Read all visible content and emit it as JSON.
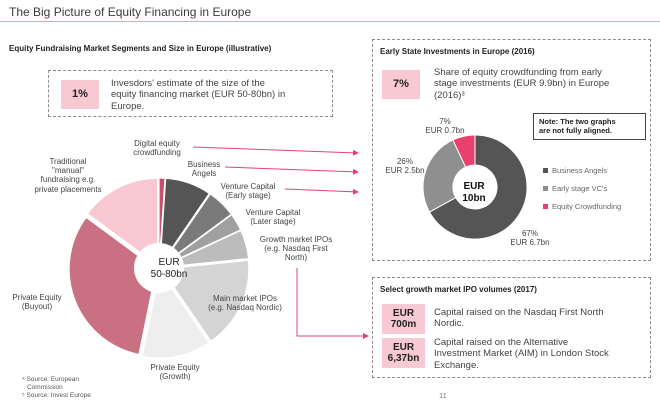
{
  "header": {
    "title": "The Big Picture of Equity Financing in Europe"
  },
  "left": {
    "heading": "Equity Fundraising Market Segments and Size in Europe (illustrative)",
    "estimate_badge": "1%",
    "estimate_text": [
      "Invesdors' estimate of the size of the",
      "equity financing market (EUR 50-80bn) in",
      "Europe."
    ],
    "pie_center": [
      "EUR",
      "50-80bn"
    ],
    "segment_labels": {
      "digital_equity": [
        "Digital equity",
        "crowdfunding"
      ],
      "business_angels": [
        "Business",
        "Angels"
      ],
      "vc_early": [
        "Venture Capital",
        "(Early stage)"
      ],
      "vc_later": [
        "Venture Capital",
        "(Later stage)"
      ],
      "growth_ipo": [
        "Growth market IPOs",
        "(e.g. Nasdaq First",
        "North)"
      ],
      "main_ipo": [
        "Main market IPOs",
        "(e.g. Nasdaq Nordic)"
      ],
      "pe_growth": [
        "Private Equity",
        "(Growth)"
      ],
      "pe_buyout": [
        "Private Equity",
        "(Buyout)"
      ],
      "traditional": [
        "Traditional",
        "\"manual\"",
        "fundraising e.g.",
        "private placements"
      ]
    },
    "footnotes": [
      "⁴ Source: European",
      "Commission",
      "⁵ Source: Invest Europe"
    ]
  },
  "early_stage": {
    "heading": "Early State Investments in Europe (2016)",
    "badge": "7%",
    "text": [
      "Share of equity crowdfunding from early",
      "stage investments (EUR 9.9bn) in Europe",
      "(2016)³"
    ],
    "note": [
      "Note: The two graphs",
      "are not fully aligned."
    ],
    "donut_center": [
      "EUR",
      "10bn"
    ],
    "slice_labels": {
      "crowd": [
        "7%",
        "EUR 0.7bn"
      ],
      "vc": [
        "26%",
        "EUR 2.5bn"
      ],
      "angels": [
        "67%",
        "EUR 6.7bn"
      ]
    },
    "legend": [
      {
        "label": "Business Angels",
        "color": "#555555"
      },
      {
        "label": "Early stage VC's",
        "color": "#8f8f8f"
      },
      {
        "label": "Equity Crowdfunding",
        "color": "#e8416f"
      }
    ]
  },
  "ipo": {
    "heading": "Select growth market IPO volumes (2017)",
    "rows": [
      {
        "badge": [
          "EUR",
          "700m"
        ],
        "text": [
          "Capital raised on the Nasdaq First North",
          "Nordic."
        ]
      },
      {
        "badge": [
          "EUR",
          "6,37bn"
        ],
        "text": [
          "Capital raised on the Alternative",
          "Investment Market (AIM) in London Stock",
          "Exchange."
        ]
      }
    ]
  },
  "page_number": "11",
  "chart_data": [
    {
      "type": "pie",
      "title": "",
      "categories": [
        "Digital equity crowdfunding",
        "Business Angels",
        "Venture Capital (Early stage)",
        "Venture Capital (Later stage)",
        "Growth market IPOs",
        "Main market IPOs",
        "Private Equity (Growth)",
        "Private Equity (Buyout)",
        "Traditional \"manual\" fundraising"
      ],
      "values": [
        1,
        8,
        5,
        3,
        5,
        16,
        12,
        30,
        14
      ],
      "colors": [
        "#c74f6e",
        "#555555",
        "#7a7a7a",
        "#a0a0a0",
        "#bcbcbc",
        "#d4d4d4",
        "#eeeeee",
        "#c97082",
        "#f8c8d3"
      ],
      "center_label": "EUR 50-80bn",
      "note": "illustrative"
    },
    {
      "type": "pie",
      "title": "Early State Investments in Europe (2016)",
      "categories": [
        "Business Angels",
        "Early stage VC's",
        "Equity Crowdfunding"
      ],
      "values": [
        67,
        26,
        7
      ],
      "amounts_eur_bn": [
        6.7,
        2.5,
        0.7
      ],
      "colors": [
        "#555555",
        "#8f8f8f",
        "#e8416f"
      ],
      "center_label": "EUR 10bn",
      "legend": "right"
    }
  ]
}
